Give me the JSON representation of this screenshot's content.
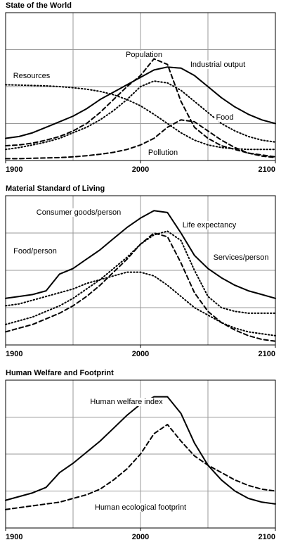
{
  "chart_data": [
    {
      "type": "line",
      "title": "State of the World",
      "x": [
        1900,
        1910,
        1920,
        1930,
        1940,
        1950,
        1960,
        1970,
        1980,
        1990,
        2000,
        2010,
        2020,
        2030,
        2040,
        2050,
        2060,
        2070,
        2080,
        2090,
        2100
      ],
      "xlim": [
        1900,
        2100
      ],
      "xticks": [
        1900,
        2000,
        2100
      ],
      "xgrid": [
        1950,
        2000,
        2050
      ],
      "ylim": [
        0,
        4
      ],
      "ygrid": [
        1,
        2,
        3
      ],
      "series": [
        {
          "name": "Population",
          "color": "#000",
          "style": "solid",
          "values": [
            0.6,
            0.65,
            0.75,
            0.9,
            1.05,
            1.2,
            1.4,
            1.65,
            1.85,
            2.05,
            2.25,
            2.45,
            2.53,
            2.5,
            2.3,
            2.0,
            1.7,
            1.45,
            1.25,
            1.1,
            1.0
          ]
        },
        {
          "name": "Industrial output",
          "color": "#000",
          "style": "dashed",
          "values": [
            0.4,
            0.42,
            0.47,
            0.55,
            0.65,
            0.8,
            1.0,
            1.3,
            1.65,
            2.0,
            2.3,
            2.75,
            2.6,
            1.6,
            0.9,
            0.6,
            0.4,
            0.3,
            0.2,
            0.15,
            0.1
          ]
        },
        {
          "name": "Food",
          "color": "#000",
          "style": "dotted",
          "values": [
            0.3,
            0.35,
            0.42,
            0.5,
            0.6,
            0.75,
            0.9,
            1.1,
            1.35,
            1.65,
            2.0,
            2.15,
            2.1,
            1.9,
            1.6,
            1.3,
            1.0,
            0.8,
            0.65,
            0.55,
            0.5
          ]
        },
        {
          "name": "Resources",
          "color": "#000",
          "style": "dotted",
          "values": [
            2.05,
            2.04,
            2.03,
            2.02,
            2.0,
            1.97,
            1.93,
            1.87,
            1.78,
            1.65,
            1.48,
            1.25,
            1.0,
            0.75,
            0.55,
            0.42,
            0.35,
            0.32,
            0.3,
            0.3,
            0.3
          ]
        },
        {
          "name": "Pollution",
          "color": "#000",
          "style": "dashed",
          "values": [
            0.05,
            0.05,
            0.06,
            0.07,
            0.08,
            0.1,
            0.13,
            0.17,
            0.22,
            0.3,
            0.42,
            0.6,
            0.9,
            1.1,
            1.05,
            0.8,
            0.55,
            0.35,
            0.2,
            0.12,
            0.08
          ]
        }
      ]
    },
    {
      "type": "line",
      "title": "Material Standard of Living",
      "x": [
        1900,
        1910,
        1920,
        1930,
        1940,
        1950,
        1960,
        1970,
        1980,
        1990,
        2000,
        2010,
        2020,
        2030,
        2040,
        2050,
        2060,
        2070,
        2080,
        2090,
        2100
      ],
      "xlim": [
        1900,
        2100
      ],
      "xticks": [
        1900,
        2000,
        2100
      ],
      "xgrid": [
        1950,
        2000,
        2050
      ],
      "ylim": [
        0,
        4
      ],
      "ygrid": [
        1,
        2,
        3
      ],
      "series": [
        {
          "name": "Life expectancy",
          "color": "#000",
          "style": "solid",
          "values": [
            1.25,
            1.3,
            1.35,
            1.45,
            1.9,
            2.05,
            2.3,
            2.55,
            2.85,
            3.15,
            3.4,
            3.6,
            3.55,
            3.0,
            2.4,
            2.05,
            1.8,
            1.6,
            1.45,
            1.35,
            1.25
          ]
        },
        {
          "name": "Consumer goods/person",
          "color": "#000",
          "style": "dashed",
          "values": [
            0.35,
            0.45,
            0.55,
            0.7,
            0.85,
            1.05,
            1.3,
            1.6,
            1.95,
            2.3,
            2.7,
            3.0,
            2.9,
            2.2,
            1.4,
            0.9,
            0.6,
            0.4,
            0.25,
            0.15,
            0.1
          ]
        },
        {
          "name": "Food/person",
          "color": "#000",
          "style": "dotted",
          "values": [
            1.05,
            1.1,
            1.2,
            1.3,
            1.4,
            1.5,
            1.65,
            1.75,
            1.85,
            1.95,
            1.95,
            1.85,
            1.6,
            1.3,
            1.0,
            0.8,
            0.6,
            0.45,
            0.35,
            0.3,
            0.25
          ]
        },
        {
          "name": "Services/person",
          "color": "#000",
          "style": "dotted",
          "values": [
            0.55,
            0.65,
            0.75,
            0.9,
            1.05,
            1.25,
            1.5,
            1.75,
            2.05,
            2.35,
            2.7,
            2.95,
            3.05,
            2.8,
            2.0,
            1.3,
            1.0,
            0.9,
            0.85,
            0.85,
            0.85
          ]
        }
      ]
    },
    {
      "type": "line",
      "title": "Human Welfare and Footprint",
      "x": [
        1900,
        1910,
        1920,
        1930,
        1940,
        1950,
        1960,
        1970,
        1980,
        1990,
        2000,
        2010,
        2020,
        2030,
        2040,
        2050,
        2060,
        2070,
        2080,
        2090,
        2100
      ],
      "xlim": [
        1900,
        2100
      ],
      "xticks": [
        1900,
        2000,
        2100
      ],
      "xgrid": [
        1950,
        2000,
        2050
      ],
      "ylim": [
        0,
        4
      ],
      "ygrid": [
        1,
        2,
        3
      ],
      "series": [
        {
          "name": "Human welfare index",
          "color": "#000",
          "style": "solid",
          "values": [
            0.75,
            0.85,
            0.95,
            1.1,
            1.5,
            1.75,
            2.05,
            2.35,
            2.7,
            3.05,
            3.35,
            3.55,
            3.55,
            3.1,
            2.3,
            1.7,
            1.3,
            1.0,
            0.8,
            0.7,
            0.65
          ]
        },
        {
          "name": "Human ecological footprint",
          "color": "#000",
          "style": "dashed",
          "values": [
            0.5,
            0.55,
            0.6,
            0.65,
            0.7,
            0.8,
            0.9,
            1.05,
            1.3,
            1.6,
            2.0,
            2.55,
            2.8,
            2.35,
            1.95,
            1.7,
            1.5,
            1.3,
            1.15,
            1.05,
            1.0
          ]
        }
      ]
    }
  ]
}
